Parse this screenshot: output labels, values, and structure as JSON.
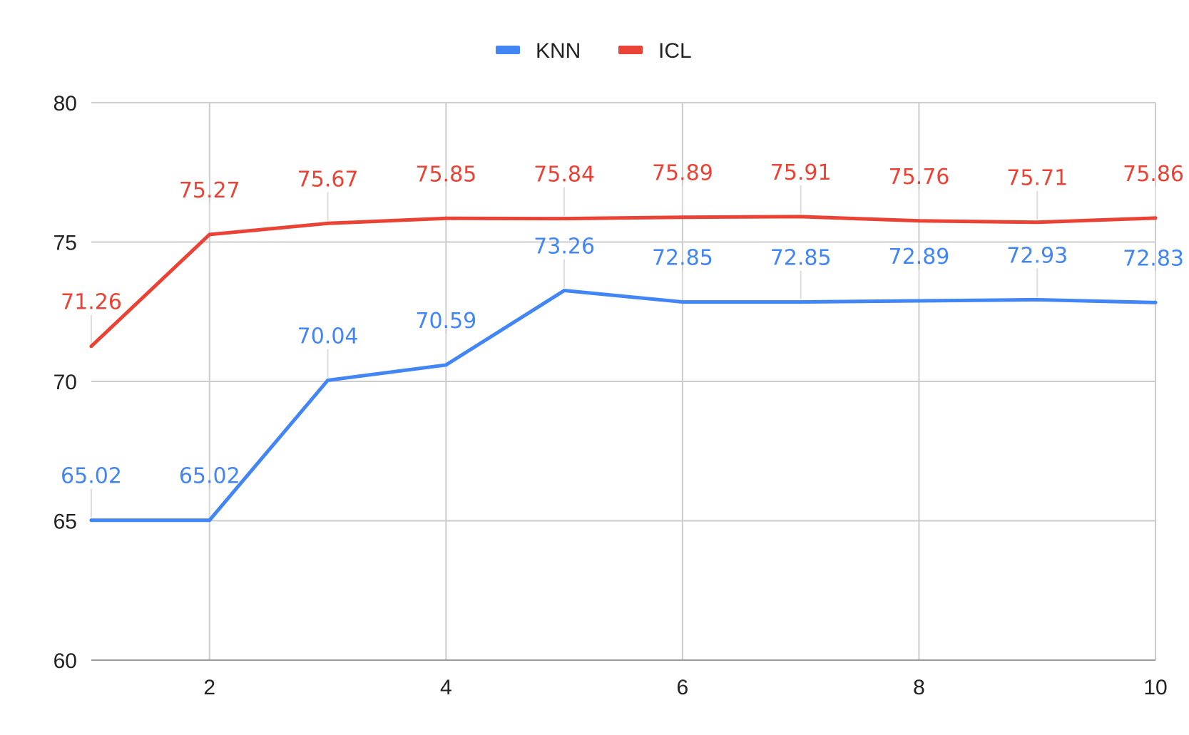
{
  "chart_data": {
    "type": "line",
    "x": [
      1,
      2,
      3,
      4,
      5,
      6,
      7,
      8,
      9,
      10
    ],
    "xticks": [
      2,
      4,
      6,
      8,
      10
    ],
    "xlim": [
      1,
      10
    ],
    "ylim": [
      60,
      80
    ],
    "yticks": [
      60,
      65,
      70,
      75,
      80
    ],
    "grid": true,
    "legend": "top-center",
    "title": "",
    "xlabel": "",
    "ylabel": "",
    "series": [
      {
        "name": "KNN",
        "color": "#4285f4",
        "values": [
          65.02,
          65.02,
          70.04,
          70.59,
          73.26,
          72.85,
          72.85,
          72.89,
          72.93,
          72.83
        ],
        "labels": [
          "65.02",
          "65.02",
          "70.04",
          "70.59",
          "73.26",
          "72.85",
          "72.85",
          "72.89",
          "72.93",
          "72.83"
        ]
      },
      {
        "name": "ICL",
        "color": "#ea4335",
        "values": [
          71.26,
          75.27,
          75.67,
          75.85,
          75.84,
          75.89,
          75.91,
          75.76,
          75.71,
          75.86
        ],
        "labels": [
          "71.26",
          "75.27",
          "75.67",
          "75.85",
          "75.84",
          "75.89",
          "75.91",
          "75.76",
          "75.71",
          "75.86"
        ]
      }
    ]
  }
}
